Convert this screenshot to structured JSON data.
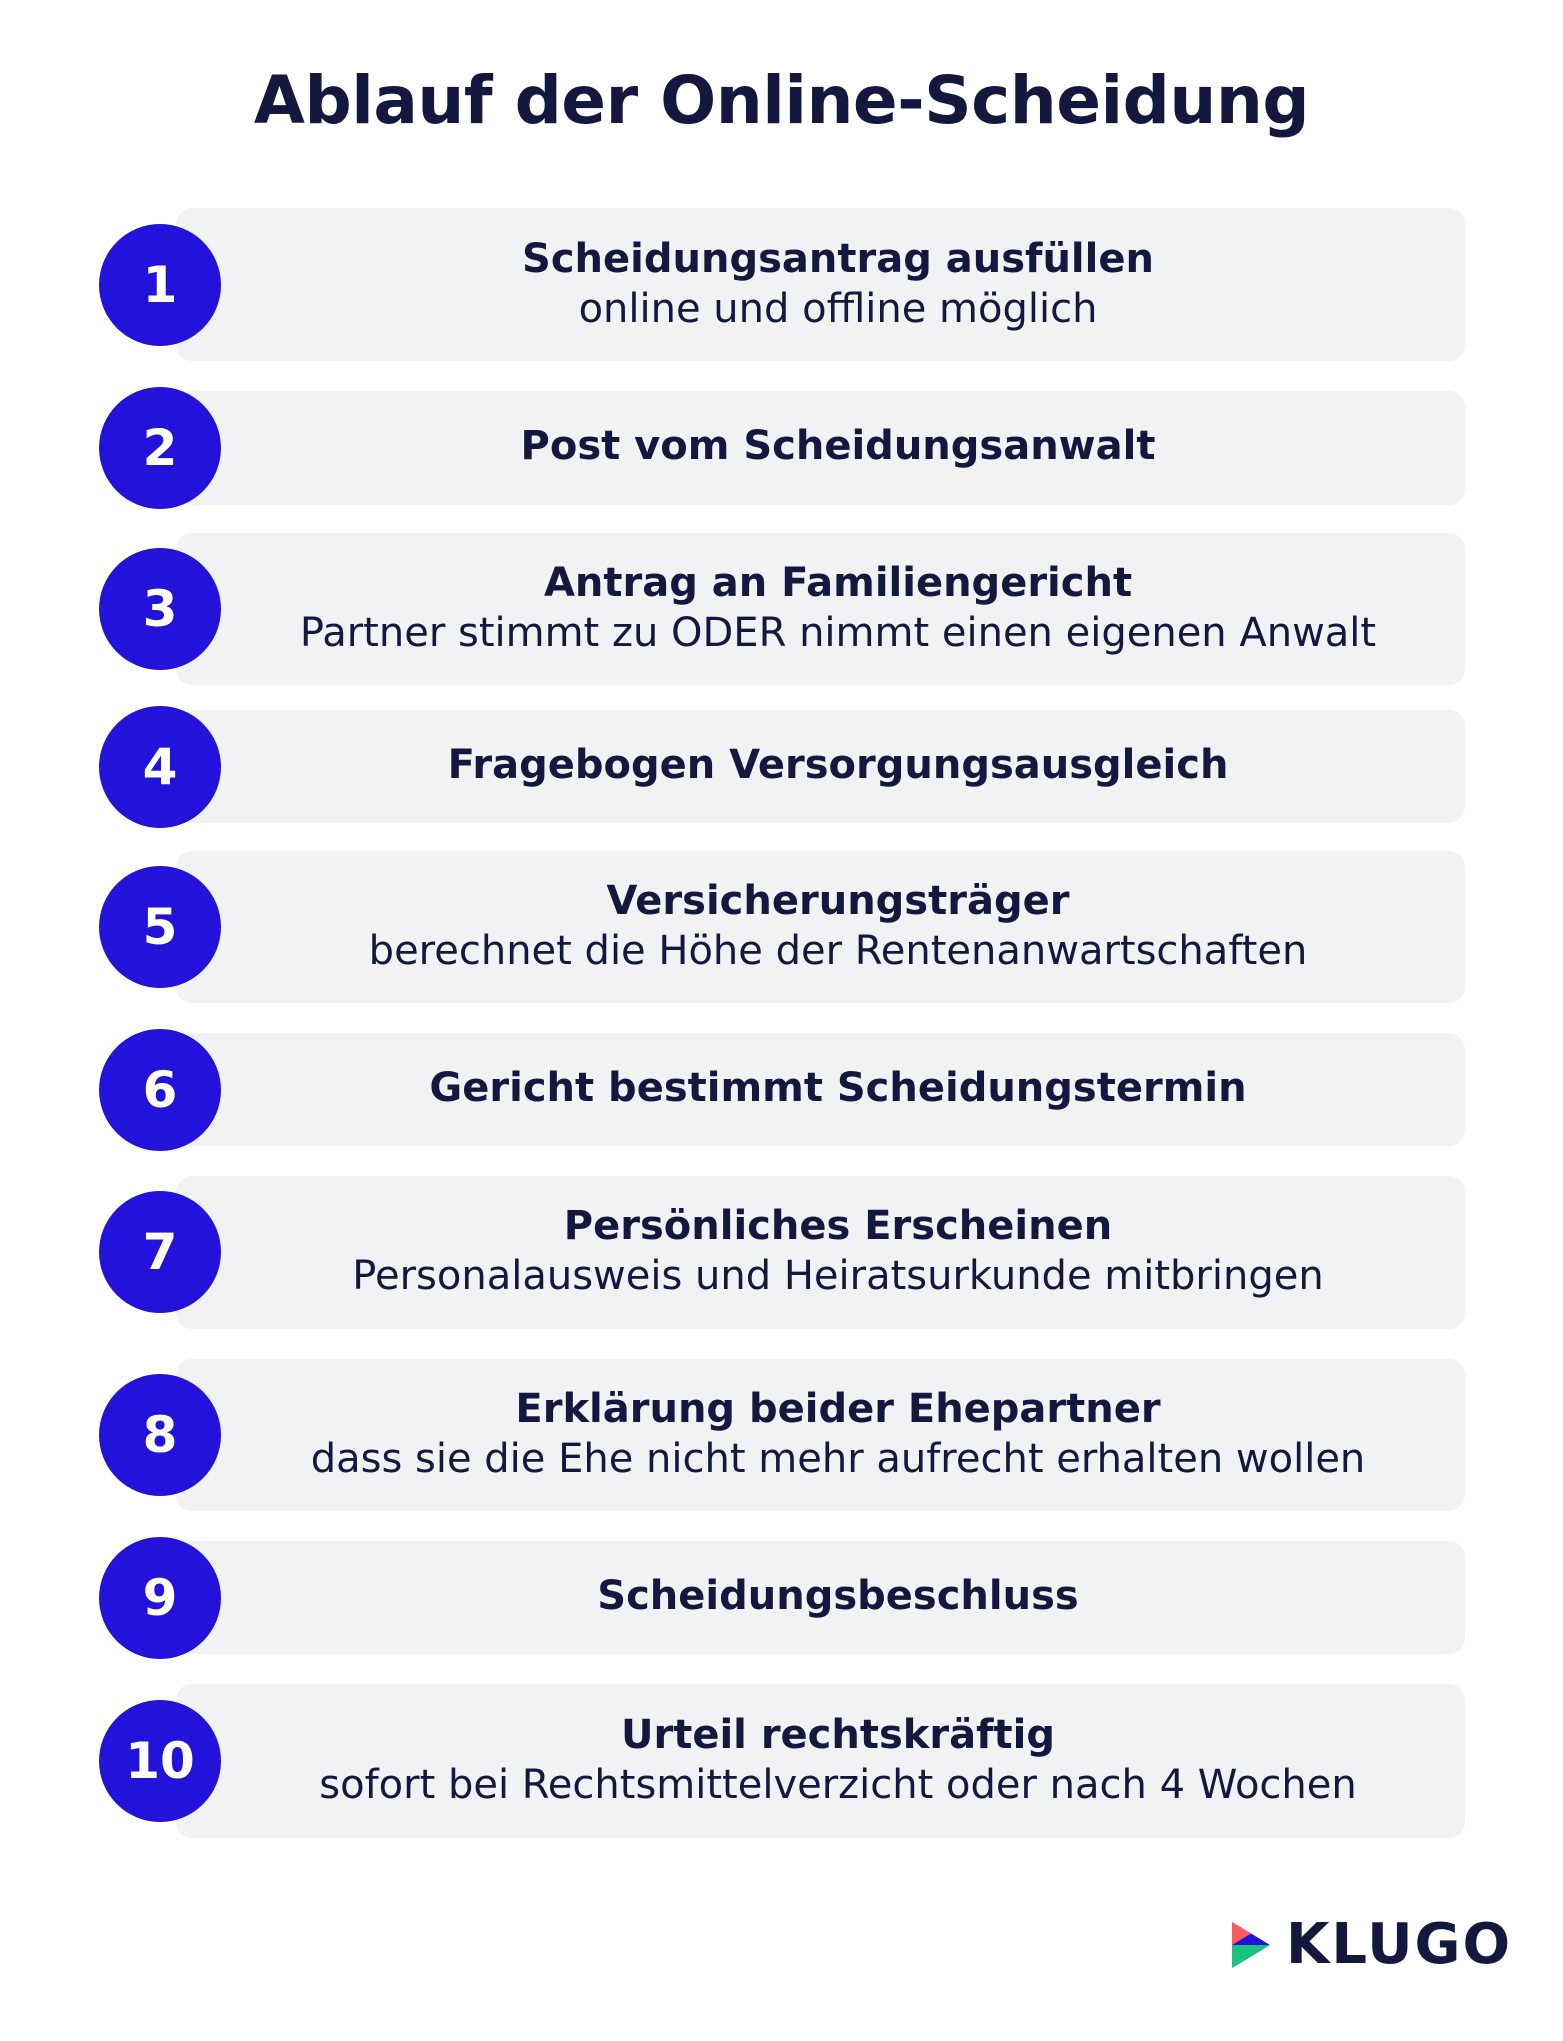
{
  "header": {
    "title": "Ablauf der Online-Scheidung"
  },
  "steps": [
    {
      "number": "1",
      "title": "Scheidungsantrag ausfüllen",
      "subtitle": "online und offline möglich"
    },
    {
      "number": "2",
      "title": "Post vom Scheidungsanwalt"
    },
    {
      "number": "3",
      "title": "Antrag an Familiengericht",
      "subtitle": "Partner stimmt zu ODER nimmt einen eigenen Anwalt"
    },
    {
      "number": "4",
      "title": "Fragebogen Versorgungsausgleich"
    },
    {
      "number": "5",
      "title": "Versicherungsträger",
      "subtitle": "berechnet die Höhe der Rentenanwartschaften"
    },
    {
      "number": "6",
      "title": "Gericht bestimmt Scheidungstermin"
    },
    {
      "number": "7",
      "title": "Persönliches Erscheinen",
      "subtitle": "Personalausweis und Heiratsurkunde mitbringen"
    },
    {
      "number": "8",
      "title": "Erklärung beider Ehepartner",
      "subtitle": "dass sie die Ehe nicht mehr aufrecht erhalten wollen"
    },
    {
      "number": "9",
      "title": "Scheidungsbeschluss"
    },
    {
      "number": "10",
      "title": "Urteil rechtskräftig",
      "subtitle": "sofort bei Rechtsmittelverzicht oder nach 4 Wochen"
    }
  ],
  "footer": {
    "logo": "KLUGO"
  }
}
